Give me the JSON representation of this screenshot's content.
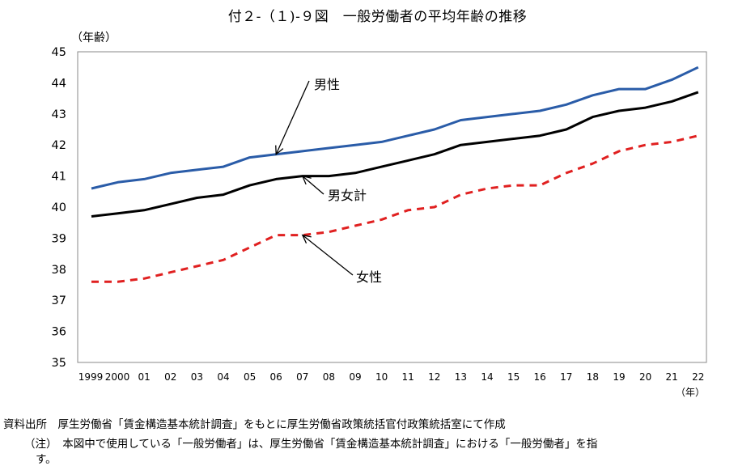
{
  "title": "付２-（１)-９図　一般労働者の平均年齢の推移",
  "chart_data": {
    "type": "line",
    "ylabel": "（年齢）",
    "xlabel": "（年）",
    "ylim": [
      35,
      45
    ],
    "yticks": [
      "35",
      "36",
      "37",
      "38",
      "39",
      "40",
      "41",
      "42",
      "43",
      "44",
      "45"
    ],
    "categories": [
      "1999",
      "2000",
      "01",
      "02",
      "03",
      "04",
      "05",
      "06",
      "07",
      "08",
      "09",
      "10",
      "11",
      "12",
      "13",
      "14",
      "15",
      "16",
      "17",
      "18",
      "19",
      "20",
      "21",
      "22"
    ],
    "grid": false,
    "series": [
      {
        "name": "男性",
        "color": "#2a5ca8",
        "style": "solid",
        "values": [
          40.6,
          40.8,
          40.9,
          41.1,
          41.2,
          41.3,
          41.6,
          41.7,
          41.8,
          41.9,
          42.0,
          42.1,
          42.3,
          42.5,
          42.8,
          42.9,
          43.0,
          43.1,
          43.3,
          43.6,
          43.8,
          43.8,
          44.1,
          44.5
        ]
      },
      {
        "name": "男女計",
        "color": "#000000",
        "style": "solid",
        "values": [
          39.7,
          39.8,
          39.9,
          40.1,
          40.3,
          40.4,
          40.7,
          40.9,
          41.0,
          41.0,
          41.1,
          41.3,
          41.5,
          41.7,
          42.0,
          42.1,
          42.2,
          42.3,
          42.5,
          42.9,
          43.1,
          43.2,
          43.4,
          43.7
        ]
      },
      {
        "name": "女性",
        "color": "#e02020",
        "style": "dashed",
        "values": [
          37.6,
          37.6,
          37.7,
          37.9,
          38.1,
          38.3,
          38.7,
          39.1,
          39.1,
          39.2,
          39.4,
          39.6,
          39.9,
          40.0,
          40.4,
          40.6,
          40.7,
          40.7,
          41.1,
          41.4,
          41.8,
          42.0,
          42.1,
          42.3
        ]
      }
    ]
  },
  "notes": {
    "source": "資料出所　厚生労働省「賃金構造基本統計調査」をもとに厚生労働省政策統括官付政策統括室にて作成",
    "note1": "（注）　本図中で使用している「一般労働者」は、厚生労働省「賃金構造基本統計調査」における「一般労働者」を指",
    "note2": "す。"
  }
}
